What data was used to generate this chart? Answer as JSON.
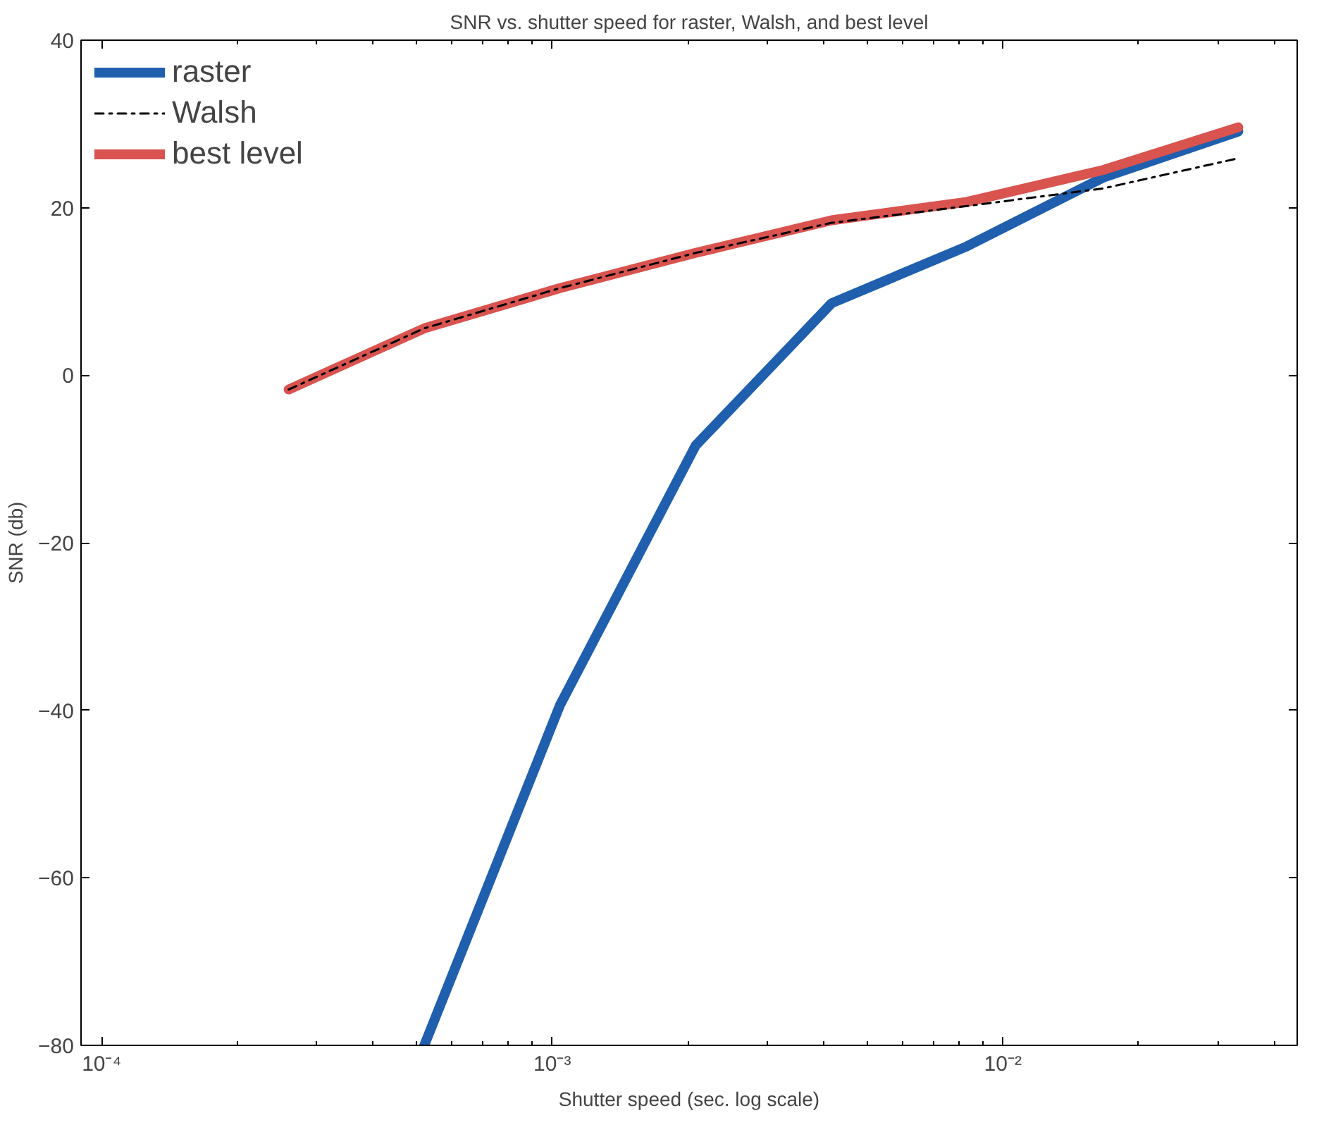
{
  "chart_data": {
    "type": "line",
    "title": "SNR vs. shutter speed for raster, Walsh, and best level",
    "xlabel": "Shutter speed (sec. log scale)",
    "ylabel": "SNR (db)",
    "log": "x",
    "x": [
      0.00026,
      0.00052,
      0.00104,
      0.00208,
      0.00417,
      0.00833,
      0.0167,
      0.0333
    ],
    "xlim": [
      9e-05,
      0.045
    ],
    "ylim": [
      -80,
      40
    ],
    "xticks": [
      {
        "value": 0.0001,
        "label": "10⁻⁴"
      },
      {
        "value": 0.001,
        "label": "10⁻³"
      },
      {
        "value": 0.01,
        "label": "10⁻²"
      }
    ],
    "yticks": [
      -80,
      -60,
      -40,
      -20,
      0,
      20,
      40
    ],
    "grid": false,
    "legend": "top left",
    "marker": "none",
    "series": [
      {
        "name": "raster",
        "color": "#1f5fae",
        "line_style": "solid",
        "values": [
          null,
          -80,
          -39.4,
          -8.4,
          8.6,
          15.4,
          23.6,
          29.1
        ]
      },
      {
        "name": "Walsh",
        "color": "#000000",
        "line_style": "dashdot",
        "values": [
          -1.7,
          5.6,
          10.4,
          14.6,
          18.2,
          20.2,
          22.3,
          25.9
        ]
      },
      {
        "name": "best level",
        "color": "#d9534f",
        "line_style": "solid",
        "values": [
          -1.7,
          5.6,
          10.4,
          14.6,
          18.5,
          20.7,
          24.5,
          29.6
        ]
      }
    ]
  }
}
